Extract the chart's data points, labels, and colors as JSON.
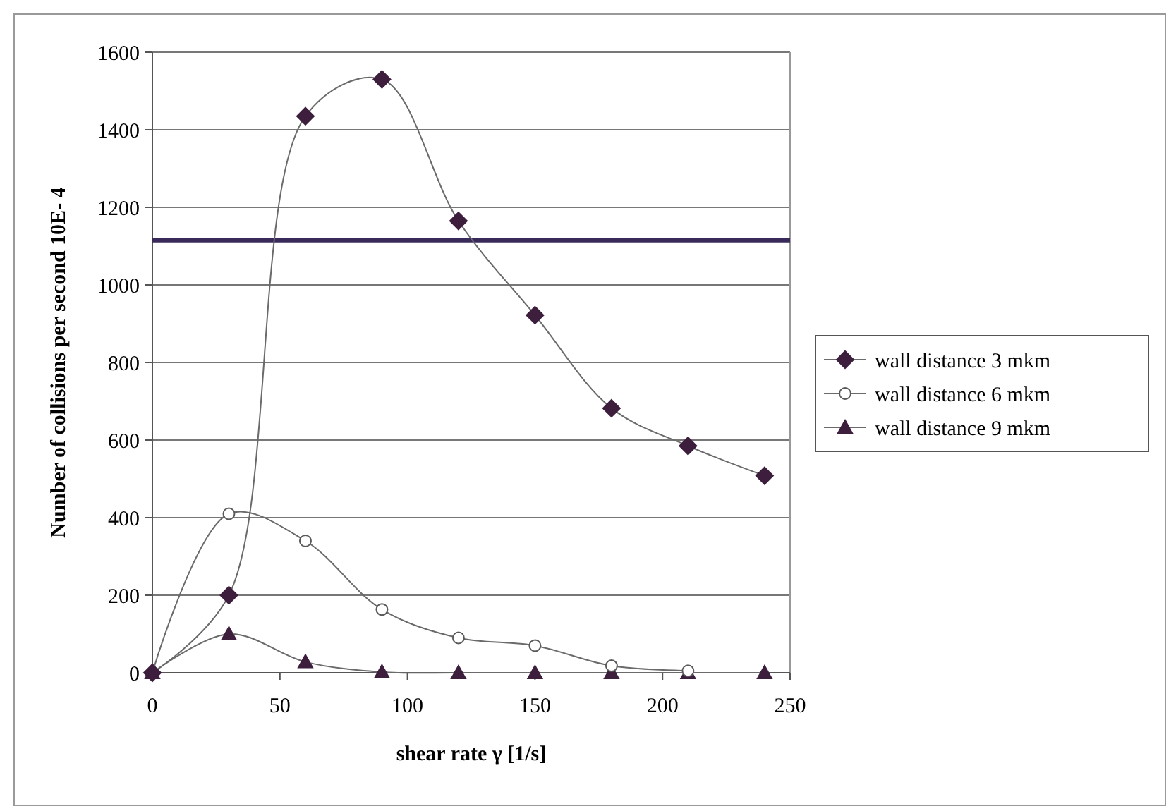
{
  "chart_data": {
    "type": "line",
    "xlabel": "shear rate  γ [1/s]",
    "ylabel": "Number of collisions per second 10E- 4",
    "x": [
      0,
      30,
      60,
      90,
      120,
      150,
      180,
      210,
      240
    ],
    "series": [
      {
        "name": "wall distance 3 mkm",
        "color": "#3d1f3d",
        "marker": "diamond",
        "values": [
          0,
          200,
          1435,
          1530,
          1165,
          922,
          682,
          585,
          508
        ]
      },
      {
        "name": "wall distance 6 mkm",
        "color": "#5a5a5a",
        "marker": "circle",
        "values": [
          0,
          410,
          340,
          163,
          90,
          70,
          18,
          5,
          null
        ]
      },
      {
        "name": "wall distance 9 mkm",
        "color": "#3d1f3d",
        "marker": "triangle",
        "values": [
          0,
          100,
          28,
          2,
          0,
          0,
          0,
          0,
          0
        ]
      }
    ],
    "xlim": [
      0,
      250
    ],
    "xticks": [
      0,
      50,
      100,
      150,
      200,
      250
    ],
    "ylim": [
      0,
      1600
    ],
    "yticks": [
      0,
      200,
      400,
      600,
      800,
      1000,
      1200,
      1400,
      1600
    ],
    "ref_lines": [
      {
        "axis": "y",
        "value": 1115,
        "color": "#3a2a5a"
      }
    ],
    "grid": "y",
    "legend": "right"
  }
}
